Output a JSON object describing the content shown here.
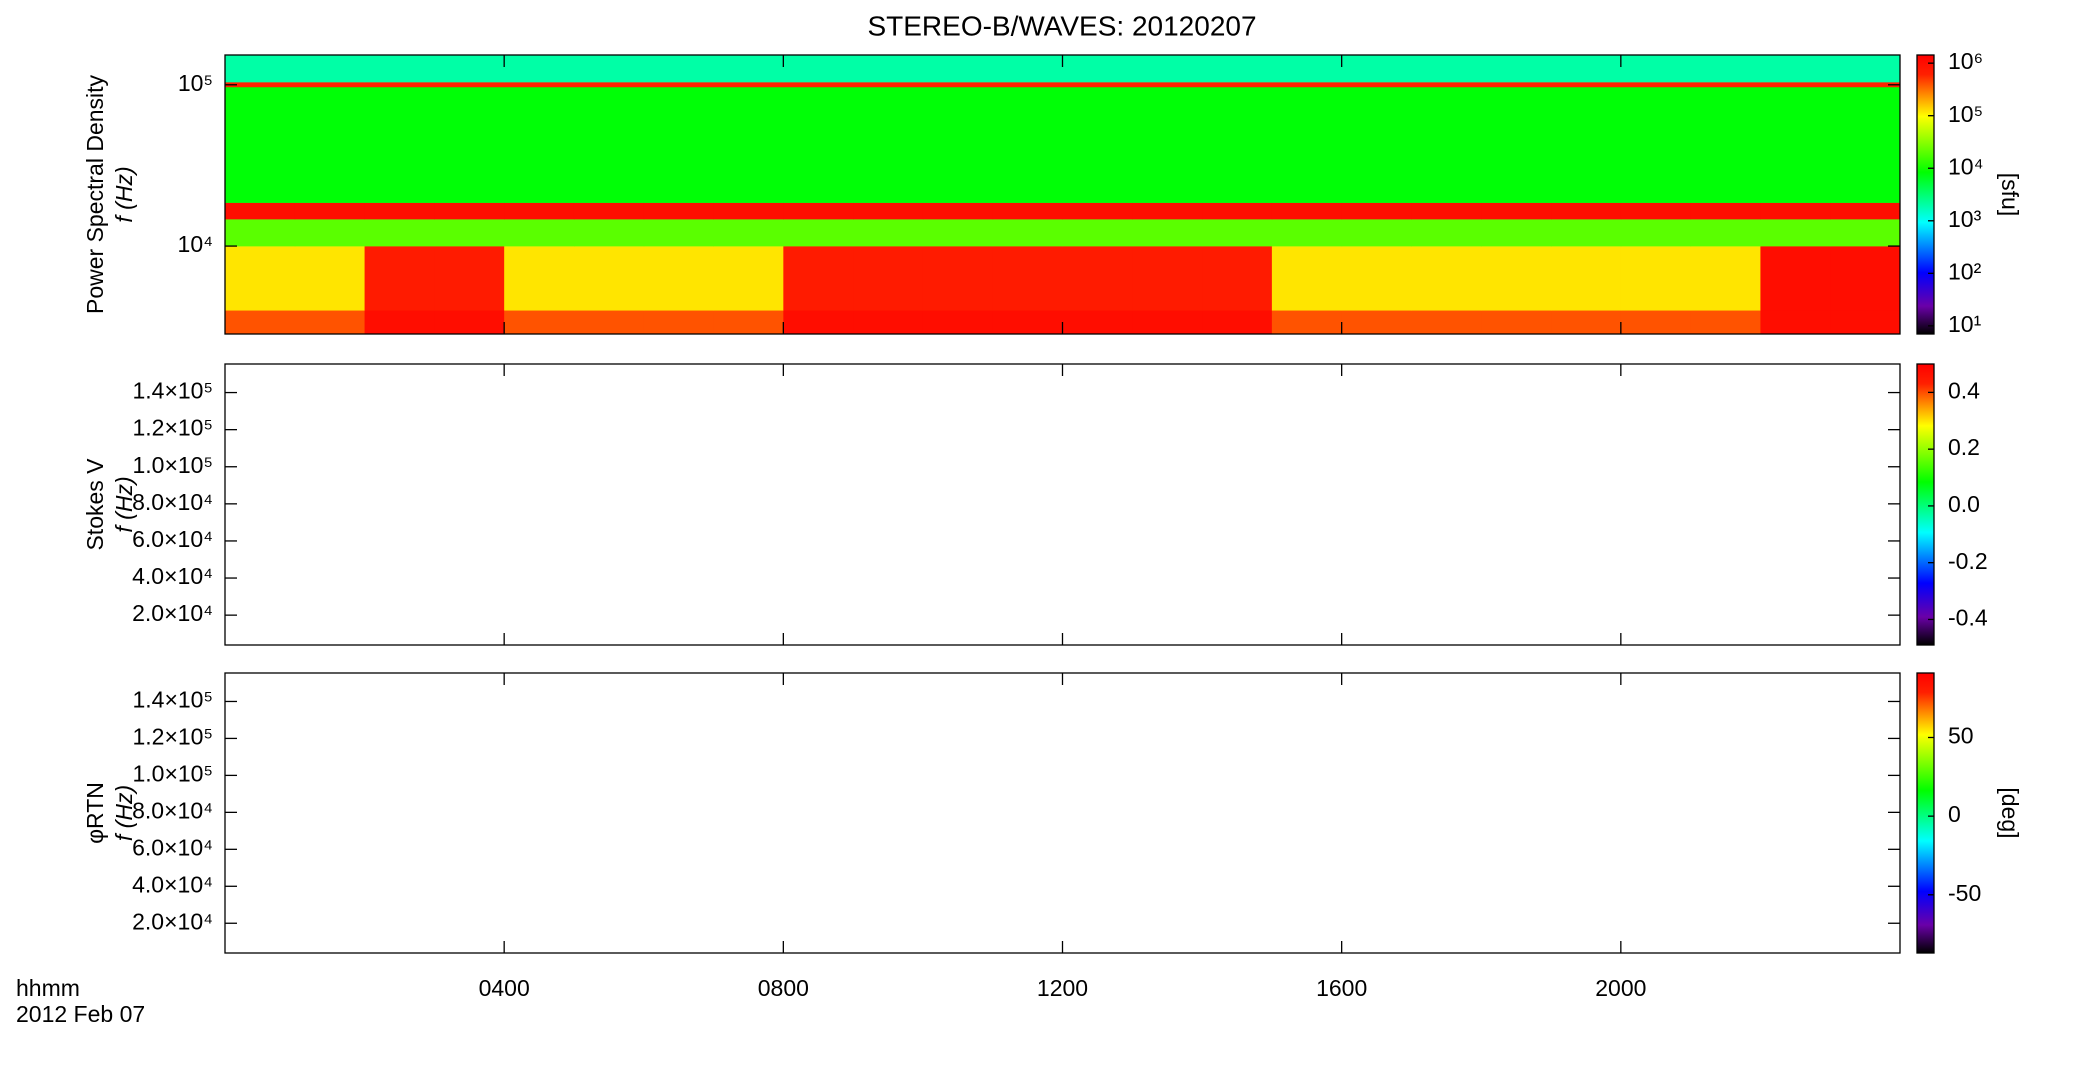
{
  "chart_data": [
    {
      "type": "heatmap",
      "title": "STEREO-B/WAVES: 20120207",
      "ylabel": "Power Spectral Density",
      "ylabel2": "f (Hz)",
      "log_y": true,
      "xlim": [
        0,
        24
      ],
      "ylim": [
        2850,
        153000
      ],
      "yticks": [
        {
          "value": 10000,
          "label": "10⁴"
        },
        {
          "value": 100000,
          "label": "10⁵"
        }
      ],
      "x": [
        0,
        1,
        2,
        3,
        4,
        5,
        6,
        7,
        8,
        9,
        10,
        11,
        12,
        13,
        14,
        15,
        16,
        17,
        18,
        19,
        20,
        21,
        22,
        23,
        24
      ],
      "y": [
        2850,
        4000,
        10000,
        14700,
        18600,
        97000,
        104000,
        153000
      ],
      "z": [
        [
          400000,
          400000,
          1000000,
          1000000,
          400000,
          400000,
          400000,
          400000,
          1000000,
          1000000,
          1000000,
          1000000,
          1000000,
          1000000,
          1000000,
          400000,
          400000,
          400000,
          400000,
          400000,
          400000,
          400000,
          1000000,
          1000000
        ],
        [
          120000,
          120000,
          700000,
          700000,
          120000,
          120000,
          120000,
          120000,
          700000,
          700000,
          700000,
          700000,
          700000,
          700000,
          700000,
          120000,
          120000,
          120000,
          120000,
          120000,
          120000,
          120000,
          1000000,
          1000000
        ],
        [
          20000,
          20000,
          20000,
          20000,
          20000,
          20000,
          20000,
          20000,
          20000,
          20000,
          20000,
          20000,
          20000,
          20000,
          20000,
          20000,
          20000,
          20000,
          20000,
          20000,
          20000,
          20000,
          20000,
          20000
        ],
        [
          1000000,
          1000000,
          1000000,
          1000000,
          1000000,
          1000000,
          1000000,
          1000000,
          1000000,
          1000000,
          1000000,
          1000000,
          1000000,
          1000000,
          1000000,
          1000000,
          1000000,
          1000000,
          1000000,
          1000000,
          1000000,
          1000000,
          1000000,
          1000000
        ],
        [
          8000,
          8000,
          8000,
          8000,
          8000,
          8000,
          8000,
          8000,
          8000,
          8000,
          8000,
          8000,
          8000,
          8000,
          8000,
          8000,
          8000,
          8000,
          8000,
          8000,
          8000,
          8000,
          8000,
          8000
        ],
        [
          600000,
          600000,
          600000,
          600000,
          600000,
          600000,
          600000,
          600000,
          600000,
          600000,
          600000,
          600000,
          600000,
          600000,
          600000,
          600000,
          600000,
          600000,
          600000,
          600000,
          600000,
          600000,
          600000,
          600000
        ],
        [
          2000,
          2000,
          2000,
          2000,
          2000,
          2000,
          2000,
          2000,
          2000,
          2000,
          2000,
          2000,
          2000,
          2000,
          2000,
          2000,
          2000,
          2000,
          2000,
          2000,
          2000,
          2000,
          2000,
          2000
        ]
      ],
      "zlog": true,
      "zlim": [
        7,
        1430000
      ],
      "zticks": [
        {
          "value": 10,
          "label": "10¹"
        },
        {
          "value": 100,
          "label": "10²"
        },
        {
          "value": 1000,
          "label": "10³"
        },
        {
          "value": 10000,
          "label": "10⁴"
        },
        {
          "value": 100000,
          "label": "10⁵"
        },
        {
          "value": 1000000,
          "label": "10⁶"
        }
      ],
      "zlabel": "[sfu]"
    },
    {
      "type": "heatmap",
      "ylabel": "Stokes V",
      "ylabel2": "f (Hz)",
      "xlim": [
        0,
        24
      ],
      "ylim": [
        3900,
        155400
      ],
      "yticks": [
        {
          "value": 20000,
          "label": "2.0×10⁴"
        },
        {
          "value": 40000,
          "label": "4.0×10⁴"
        },
        {
          "value": 60000,
          "label": "6.0×10⁴"
        },
        {
          "value": 80000,
          "label": "8.0×10⁴"
        },
        {
          "value": 100000,
          "label": "1.0×10⁵"
        },
        {
          "value": 120000,
          "label": "1.2×10⁵"
        },
        {
          "value": 140000,
          "label": "1.4×10⁵"
        }
      ],
      "zlim": [
        -0.49,
        0.5
      ],
      "zticks": [
        -0.4,
        -0.2,
        {
          "value": 0,
          "label": "0.0"
        },
        0.2,
        0.4
      ]
    },
    {
      "type": "heatmap",
      "ylabel": "φRTN",
      "ylabel2": "f (Hz)",
      "xlim": [
        0,
        24
      ],
      "ylim": [
        3900,
        155400
      ],
      "yticks": [
        {
          "value": 20000,
          "label": "2.0×10⁴"
        },
        {
          "value": 40000,
          "label": "4.0×10⁴"
        },
        {
          "value": 60000,
          "label": "6.0×10⁴"
        },
        {
          "value": 80000,
          "label": "8.0×10⁴"
        },
        {
          "value": 100000,
          "label": "1.0×10⁵"
        },
        {
          "value": 120000,
          "label": "1.2×10⁵"
        },
        {
          "value": 140000,
          "label": "1.4×10⁵"
        }
      ],
      "zlim": [
        -87,
        91
      ],
      "zticks": [
        -50,
        0,
        50
      ],
      "zlabel": "[deg]",
      "xticks": [
        {
          "value": 4,
          "label": "0400"
        },
        {
          "value": 8,
          "label": "0800"
        },
        {
          "value": 12,
          "label": "1200"
        },
        {
          "value": 16,
          "label": "1600"
        },
        {
          "value": 20,
          "label": "2000"
        }
      ],
      "xlabel": "hhmm",
      "date": "2012 Feb 07"
    }
  ]
}
